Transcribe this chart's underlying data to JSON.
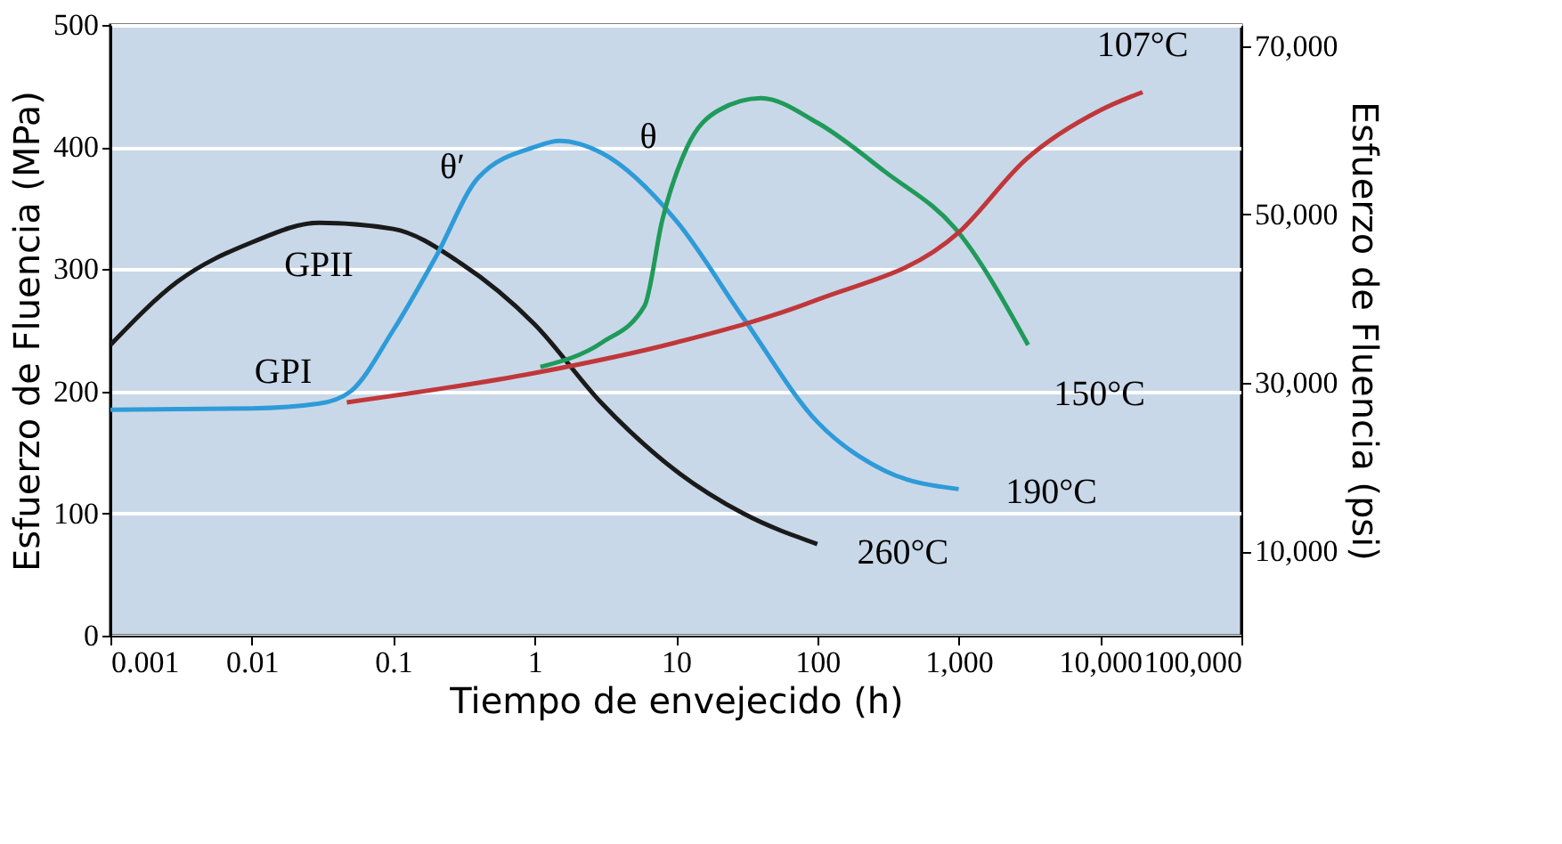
{
  "chart_data": {
    "type": "line",
    "xlabel": "Tiempo de envejecido (h)",
    "ylabel": "Esfuerzo de Fluencia (MPa)",
    "y2label": "Esfuerzo de Fluencia (psi)",
    "log": "x",
    "grid": "y",
    "legend": false,
    "marker": "none",
    "line_style": "solid",
    "xlim": [
      0.001,
      100000
    ],
    "xticks": [
      {
        "value": 0.001,
        "label": "0.001"
      },
      {
        "value": 0.01,
        "label": "0.01"
      },
      {
        "value": 0.1,
        "label": "0.1"
      },
      {
        "value": 1,
        "label": "1"
      },
      {
        "value": 10,
        "label": "10"
      },
      {
        "value": 100,
        "label": "100"
      },
      {
        "value": 1000,
        "label": "1,000"
      },
      {
        "value": 10000,
        "label": "10,000"
      },
      {
        "value": 100000,
        "label": "100,000"
      }
    ],
    "ylim": [
      0,
      500
    ],
    "yticks": [
      0,
      100,
      200,
      300,
      400,
      500
    ],
    "y2lim": [
      0,
      72500
    ],
    "y2ticks": [
      {
        "value": 10000,
        "label": "10,000"
      },
      {
        "value": 30000,
        "label": "30,000"
      },
      {
        "value": 50000,
        "label": "50,000"
      },
      {
        "value": 70000,
        "label": "70,000"
      }
    ],
    "series": [
      {
        "name": "260°C",
        "color": "#1a1a1a",
        "x": [
          0.001,
          0.003,
          0.01,
          0.03,
          0.1,
          0.3,
          1,
          3,
          10,
          30,
          100
        ],
        "values": [
          238,
          290,
          322,
          338,
          333,
          305,
          255,
          190,
          135,
          100,
          75
        ]
      },
      {
        "name": "190°C",
        "color": "#2e9bd8",
        "x": [
          0.001,
          0.01,
          0.03,
          0.05,
          0.1,
          0.2,
          0.4,
          1,
          1.5,
          3,
          10,
          30,
          100,
          300,
          1000
        ],
        "values": [
          185,
          186,
          190,
          200,
          250,
          310,
          375,
          400,
          405,
          395,
          340,
          260,
          175,
          135,
          120
        ]
      },
      {
        "name": "150°C",
        "color": "#1f9a5a",
        "x": [
          1.1,
          3,
          6,
          8,
          12,
          20,
          40,
          100,
          300,
          1000,
          3100
        ],
        "values": [
          220,
          240,
          270,
          340,
          400,
          430,
          440,
          420,
          380,
          330,
          238
        ]
      },
      {
        "name": "107°C",
        "color": "#c0373a",
        "x": [
          0.047,
          1,
          10,
          100,
          1000,
          3000,
          10000,
          20000
        ],
        "values": [
          191,
          215,
          240,
          275,
          330,
          390,
          430,
          445
        ]
      }
    ],
    "annotations": [
      "GPI",
      "GPII",
      "θ′",
      "θ"
    ]
  }
}
